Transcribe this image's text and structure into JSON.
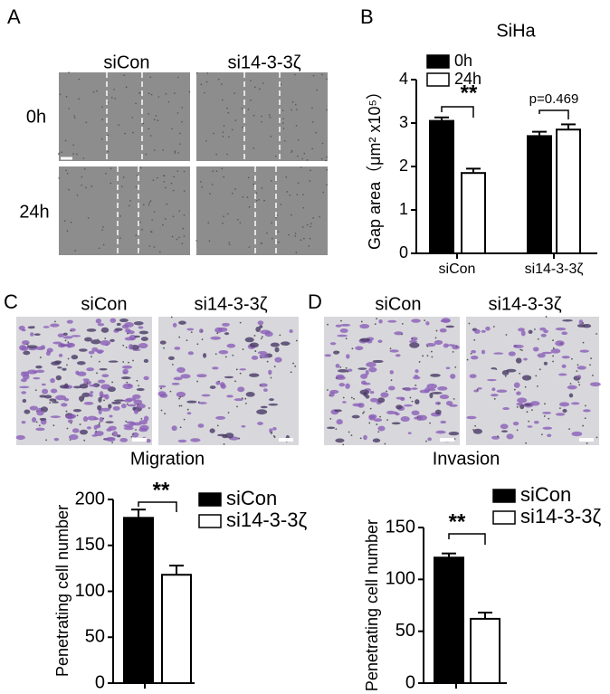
{
  "panels": [
    {
      "label": "A",
      "columns": [
        "siCon",
        "si14-3-3ζ"
      ],
      "rows": [
        "0h",
        "24h"
      ]
    },
    {
      "label": "B"
    },
    {
      "label": "C",
      "columns": [
        "siCon",
        "si14-3-3ζ"
      ]
    },
    {
      "label": "D",
      "columns": [
        "siCon",
        "si14-3-3ζ"
      ]
    }
  ],
  "chart_data": [
    {
      "type": "bar",
      "title": "SiHa",
      "y_label": "Gap area（μm² x10⁵）",
      "categories": [
        "siCon",
        "si14-3-3ζ"
      ],
      "series": [
        {
          "name": "0h",
          "color": "#000000",
          "values": [
            3.05,
            2.7
          ],
          "errors": [
            0.08,
            0.1
          ]
        },
        {
          "name": "24h",
          "color": "#ffffff",
          "values": [
            1.85,
            2.85
          ],
          "errors": [
            0.1,
            0.12
          ]
        }
      ],
      "annotations": [
        "**",
        "p=0.469"
      ],
      "ylim": [
        0,
        4
      ],
      "yticks": [
        0,
        1,
        2,
        3,
        4
      ]
    },
    {
      "type": "bar",
      "title": "Migration",
      "y_label": "Penetrating cell number",
      "series": [
        {
          "name": "siCon",
          "color": "#000000",
          "values": [
            180
          ],
          "errors": [
            9
          ]
        },
        {
          "name": "si14-3-3ζ",
          "color": "#ffffff",
          "values": [
            118
          ],
          "errors": [
            10
          ]
        }
      ],
      "annotations": [
        "**"
      ],
      "ylim": [
        0,
        200
      ],
      "yticks": [
        0,
        50,
        100,
        150,
        200
      ]
    },
    {
      "type": "bar",
      "title": "Invasion",
      "y_label": "Penetrating cell number",
      "series": [
        {
          "name": "siCon",
          "color": "#000000",
          "values": [
            121
          ],
          "errors": [
            4
          ]
        },
        {
          "name": "si14-3-3ζ",
          "color": "#ffffff",
          "values": [
            62
          ],
          "errors": [
            6
          ]
        }
      ],
      "annotations": [
        "**"
      ],
      "ylim": [
        0,
        150
      ],
      "yticks": [
        0,
        50,
        100,
        150
      ]
    }
  ]
}
